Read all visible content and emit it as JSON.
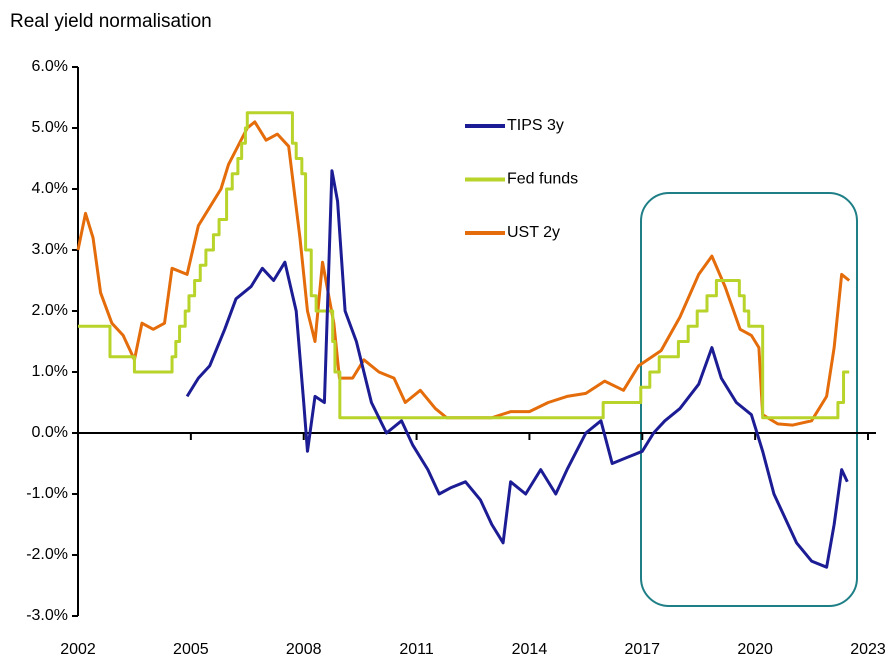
{
  "chart_data": {
    "type": "line",
    "title": "Real yield normalisation",
    "xlim": [
      2002,
      2023
    ],
    "xticks": [
      2002,
      2005,
      2008,
      2011,
      2014,
      2017,
      2020,
      2023
    ],
    "ylim": [
      -3,
      6
    ],
    "yticks": [
      {
        "value": -3,
        "label": "-3.0%"
      },
      {
        "value": -2,
        "label": "-2.0%"
      },
      {
        "value": -1,
        "label": "-1.0%"
      },
      {
        "value": 0,
        "label": "0.0%"
      },
      {
        "value": 1,
        "label": "1.0%"
      },
      {
        "value": 2,
        "label": "2.0%"
      },
      {
        "value": 3,
        "label": "3.0%"
      },
      {
        "value": 4,
        "label": "4.0%"
      },
      {
        "value": 5,
        "label": "5.0%"
      },
      {
        "value": 6,
        "label": "6.0%"
      }
    ],
    "grid": false,
    "legend": "upper center",
    "series": [
      {
        "name": "TIPS 3y",
        "color": "#1c1c94",
        "step": false,
        "x": [
          2004.9,
          2005.2,
          2005.5,
          2005.9,
          2006.2,
          2006.6,
          2006.9,
          2007.2,
          2007.5,
          2007.8,
          2008.0,
          2008.1,
          2008.3,
          2008.55,
          2008.75,
          2008.9,
          2009.1,
          2009.4,
          2009.8,
          2010.2,
          2010.6,
          2010.9,
          2011.3,
          2011.6,
          2011.9,
          2012.3,
          2012.7,
          2013.0,
          2013.3,
          2013.5,
          2013.9,
          2014.3,
          2014.7,
          2015.0,
          2015.5,
          2015.9,
          2016.2,
          2016.6,
          2017.0,
          2017.3,
          2017.6,
          2018.0,
          2018.5,
          2018.85,
          2019.1,
          2019.5,
          2019.9,
          2020.2,
          2020.5,
          2020.8,
          2021.1,
          2021.5,
          2021.9,
          2022.1,
          2022.3,
          2022.45
        ],
        "values": [
          0.6,
          0.9,
          1.1,
          1.7,
          2.2,
          2.4,
          2.7,
          2.5,
          2.8,
          2.0,
          0.5,
          -0.3,
          0.6,
          0.5,
          4.3,
          3.8,
          2.0,
          1.5,
          0.5,
          0.0,
          0.2,
          -0.2,
          -0.6,
          -1.0,
          -0.9,
          -0.8,
          -1.1,
          -1.5,
          -1.8,
          -0.8,
          -1.0,
          -0.6,
          -1.0,
          -0.6,
          0.0,
          0.2,
          -0.5,
          -0.4,
          -0.3,
          0.0,
          0.2,
          0.4,
          0.8,
          1.4,
          0.9,
          0.5,
          0.3,
          -0.3,
          -1.0,
          -1.4,
          -1.8,
          -2.1,
          -2.2,
          -1.5,
          -0.6,
          -0.8
        ]
      },
      {
        "name": "Fed funds",
        "color": "#b8d32a",
        "step": true,
        "x": [
          2002.0,
          2002.85,
          2003.5,
          2004.5,
          2004.6,
          2004.7,
          2004.85,
          2004.95,
          2005.1,
          2005.25,
          2005.4,
          2005.6,
          2005.75,
          2005.95,
          2006.1,
          2006.25,
          2006.35,
          2006.45,
          2006.5,
          2007.7,
          2007.8,
          2007.95,
          2008.05,
          2008.2,
          2008.33,
          2008.77,
          2008.83,
          2008.96,
          2015.96,
          2016.96,
          2017.2,
          2017.45,
          2017.96,
          2018.22,
          2018.46,
          2018.72,
          2018.97,
          2019.58,
          2019.71,
          2019.83,
          2020.2,
          2022.2,
          2022.35,
          2022.5
        ],
        "values": [
          1.75,
          1.25,
          1.0,
          1.25,
          1.5,
          1.75,
          2.0,
          2.25,
          2.5,
          2.75,
          3.0,
          3.25,
          3.5,
          4.0,
          4.25,
          4.5,
          4.75,
          5.0,
          5.25,
          4.75,
          4.5,
          4.25,
          3.0,
          2.25,
          2.0,
          1.5,
          1.0,
          0.25,
          0.5,
          0.75,
          1.0,
          1.25,
          1.5,
          1.75,
          2.0,
          2.25,
          2.5,
          2.25,
          2.0,
          1.75,
          0.25,
          0.5,
          1.0,
          1.0
        ]
      },
      {
        "name": "UST 2y",
        "color": "#e46c0a",
        "step": false,
        "x": [
          2002.0,
          2002.2,
          2002.4,
          2002.6,
          2002.9,
          2003.2,
          2003.5,
          2003.7,
          2004.0,
          2004.3,
          2004.5,
          2004.9,
          2005.2,
          2005.5,
          2005.8,
          2006.0,
          2006.5,
          2006.7,
          2007.0,
          2007.3,
          2007.6,
          2007.9,
          2008.1,
          2008.3,
          2008.5,
          2008.8,
          2008.95,
          2009.3,
          2009.6,
          2010.0,
          2010.4,
          2010.7,
          2011.1,
          2011.5,
          2011.8,
          2012.5,
          2013.0,
          2013.5,
          2014.0,
          2014.5,
          2015.0,
          2015.5,
          2016.0,
          2016.5,
          2016.9,
          2017.5,
          2018.0,
          2018.5,
          2018.85,
          2019.2,
          2019.6,
          2019.9,
          2020.1,
          2020.2,
          2020.6,
          2021.0,
          2021.5,
          2021.9,
          2022.1,
          2022.3,
          2022.5
        ],
        "values": [
          3.0,
          3.6,
          3.2,
          2.3,
          1.8,
          1.6,
          1.2,
          1.8,
          1.7,
          1.8,
          2.7,
          2.6,
          3.4,
          3.7,
          4.0,
          4.4,
          5.0,
          5.1,
          4.8,
          4.9,
          4.7,
          3.2,
          2.0,
          1.5,
          2.8,
          1.8,
          0.9,
          0.9,
          1.2,
          1.0,
          0.9,
          0.5,
          0.7,
          0.4,
          0.25,
          0.25,
          0.25,
          0.35,
          0.35,
          0.5,
          0.6,
          0.65,
          0.85,
          0.7,
          1.1,
          1.35,
          1.9,
          2.6,
          2.9,
          2.4,
          1.7,
          1.6,
          1.4,
          0.3,
          0.15,
          0.13,
          0.2,
          0.6,
          1.4,
          2.6,
          2.5
        ]
      }
    ]
  }
}
